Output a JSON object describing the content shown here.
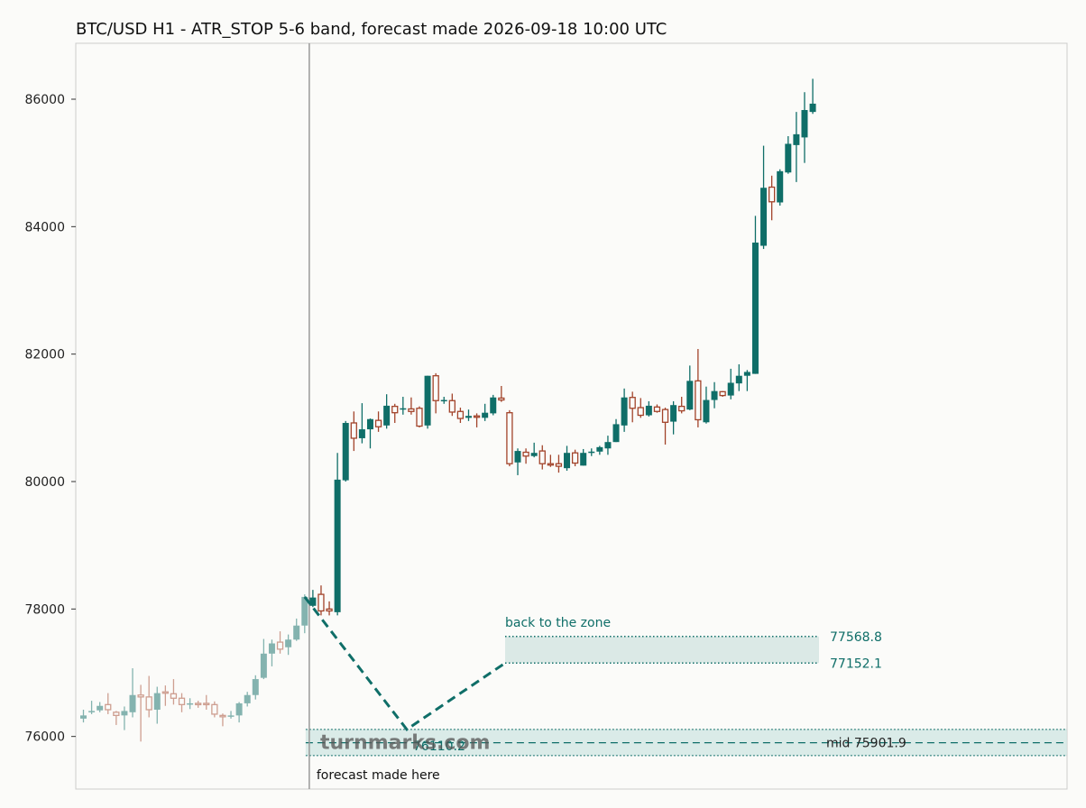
{
  "chart_data": {
    "type": "candlestick",
    "title": "BTC/USD H1 - ATR_STOP 5-6 band, forecast made 2026-09-18 10:00 UTC",
    "ylim": [
      75200,
      86900
    ],
    "yticks": [
      76000,
      78000,
      80000,
      82000,
      84000,
      86000
    ],
    "colors": {
      "up": "#0f6e68",
      "down": "#a2432a",
      "band_fill": "#cfe5e1",
      "line": "#0f6e68",
      "frame": "#cccccc",
      "vline": "#999999"
    },
    "history_candles": [
      [
        76280,
        76330,
        76220,
        76420
      ],
      [
        76380,
        76400,
        76350,
        76560
      ],
      [
        76410,
        76480,
        76380,
        76540
      ],
      [
        76500,
        76420,
        76350,
        76680
      ],
      [
        76380,
        76330,
        76180,
        76400
      ],
      [
        76330,
        76400,
        76100,
        76470
      ],
      [
        76380,
        76650,
        76300,
        77070
      ],
      [
        76650,
        76620,
        75920,
        76810
      ],
      [
        76620,
        76420,
        76300,
        76950
      ],
      [
        76420,
        76680,
        76200,
        76780
      ],
      [
        76700,
        76680,
        76480,
        76800
      ],
      [
        76670,
        76600,
        76500,
        76900
      ],
      [
        76600,
        76500,
        76380,
        76680
      ],
      [
        76500,
        76520,
        76430,
        76600
      ],
      [
        76520,
        76510,
        76450,
        76560
      ],
      [
        76520,
        76500,
        76420,
        76650
      ],
      [
        76500,
        76350,
        76300,
        76550
      ],
      [
        76330,
        76310,
        76160,
        76360
      ],
      [
        76320,
        76330,
        76280,
        76400
      ],
      [
        76330,
        76520,
        76220,
        76540
      ],
      [
        76520,
        76650,
        76470,
        76700
      ],
      [
        76650,
        76900,
        76580,
        76960
      ],
      [
        76920,
        77300,
        76900,
        77530
      ],
      [
        77300,
        77460,
        77100,
        77520
      ],
      [
        77480,
        77370,
        77300,
        77650
      ],
      [
        77400,
        77520,
        77280,
        77600
      ],
      [
        77520,
        77740,
        77500,
        77850
      ],
      [
        77740,
        78190,
        77620,
        78230
      ]
    ],
    "forecast_candles": [
      [
        78050,
        78180,
        78030,
        78300
      ],
      [
        78230,
        77970,
        77900,
        78370
      ],
      [
        78000,
        77970,
        77900,
        78120
      ],
      [
        77950,
        80030,
        77900,
        80450
      ],
      [
        80020,
        80920,
        80000,
        80950
      ],
      [
        80920,
        80680,
        80480,
        81100
      ],
      [
        80680,
        80820,
        80600,
        81230
      ],
      [
        80820,
        80980,
        80520,
        80990
      ],
      [
        80960,
        80860,
        80780,
        81100
      ],
      [
        80880,
        81190,
        80830,
        81370
      ],
      [
        81180,
        81080,
        80920,
        81220
      ],
      [
        81130,
        81150,
        81050,
        81330
      ],
      [
        81140,
        81100,
        81050,
        81320
      ],
      [
        81150,
        80870,
        80850,
        81180
      ],
      [
        80880,
        81660,
        80830,
        81660
      ],
      [
        81660,
        81270,
        81070,
        81700
      ],
      [
        81260,
        81280,
        81220,
        81330
      ],
      [
        81270,
        81090,
        81030,
        81380
      ],
      [
        81100,
        80990,
        80920,
        81160
      ],
      [
        81000,
        81030,
        80950,
        81130
      ],
      [
        81030,
        81020,
        80850,
        81070
      ],
      [
        81000,
        81080,
        80950,
        81220
      ],
      [
        81070,
        81320,
        81040,
        81360
      ],
      [
        81310,
        81280,
        81250,
        81500
      ],
      [
        81080,
        80280,
        80240,
        81120
      ],
      [
        80300,
        80480,
        80100,
        80520
      ],
      [
        80460,
        80400,
        80280,
        80520
      ],
      [
        80400,
        80450,
        80380,
        80610
      ],
      [
        80480,
        80280,
        80190,
        80570
      ],
      [
        80280,
        80270,
        80230,
        80420
      ],
      [
        80280,
        80240,
        80140,
        80420
      ],
      [
        80210,
        80450,
        80170,
        80560
      ],
      [
        80450,
        80290,
        80240,
        80500
      ],
      [
        80250,
        80450,
        80250,
        80510
      ],
      [
        80450,
        80470,
        80400,
        80520
      ],
      [
        80470,
        80540,
        80420,
        80560
      ],
      [
        80520,
        80620,
        80420,
        80720
      ],
      [
        80620,
        80900,
        80620,
        80980
      ],
      [
        80880,
        81320,
        80780,
        81460
      ],
      [
        81320,
        81150,
        80930,
        81410
      ],
      [
        81160,
        81040,
        81000,
        81310
      ],
      [
        81040,
        81190,
        81020,
        81260
      ],
      [
        81170,
        81100,
        81080,
        81210
      ],
      [
        81130,
        80930,
        80580,
        81160
      ],
      [
        80940,
        81200,
        80740,
        81260
      ],
      [
        81180,
        81110,
        81070,
        81330
      ],
      [
        81130,
        81580,
        81120,
        81820
      ],
      [
        81580,
        80970,
        80850,
        82080
      ],
      [
        80930,
        81280,
        80910,
        81490
      ],
      [
        81280,
        81420,
        81150,
        81560
      ],
      [
        81410,
        81350,
        81330,
        81420
      ],
      [
        81350,
        81550,
        81290,
        81770
      ],
      [
        81540,
        81660,
        81420,
        81840
      ],
      [
        81660,
        81720,
        81420,
        81750
      ],
      [
        81690,
        83750,
        81690,
        84170
      ],
      [
        83700,
        84610,
        83650,
        85270
      ],
      [
        84620,
        84390,
        84100,
        84800
      ],
      [
        84380,
        84870,
        84330,
        84900
      ],
      [
        84850,
        85300,
        84830,
        85420
      ],
      [
        85280,
        85450,
        84700,
        85800
      ],
      [
        85400,
        85830,
        85000,
        86110
      ],
      [
        85800,
        85930,
        85770,
        86320
      ]
    ],
    "forecast_path": [
      78190,
      76110.2,
      77152.1
    ],
    "forecast_path_label": "76110.2",
    "target_zone": {
      "low": 77152.1,
      "high": 77568.8,
      "low_label": "77152.1",
      "high_label": "77568.8",
      "label": "back to the zone"
    },
    "atr_band": {
      "low": 75700,
      "high": 76110,
      "mid": 75901.9,
      "mid_label": "mid 75901.9"
    },
    "forecast_marker_label": "forecast made here",
    "watermark": "turnmarks.com"
  }
}
